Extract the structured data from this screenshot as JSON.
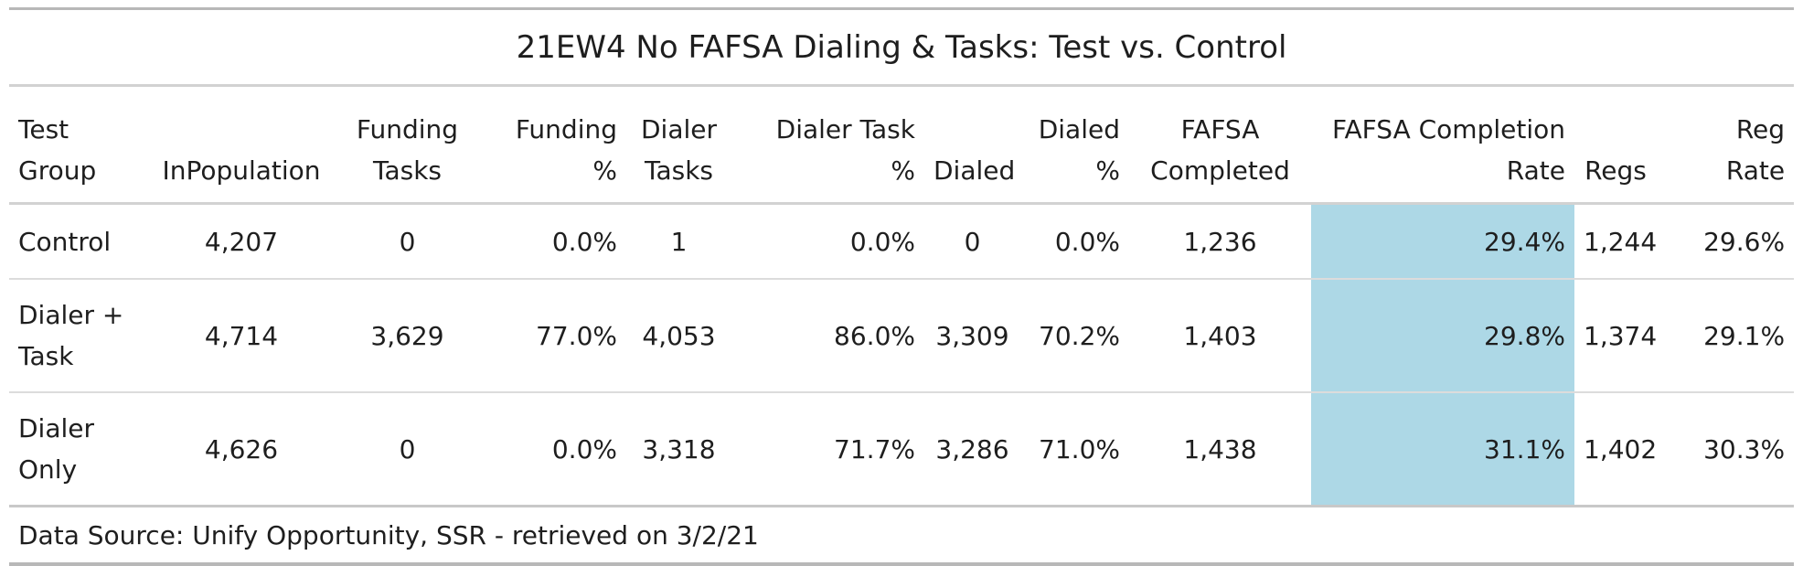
{
  "chart_data": {
    "type": "table",
    "title": "21EW4 No FAFSA Dialing & Tasks: Test vs. Control",
    "highlight_color": "#add8e6",
    "highlight_column": "FAFSA Completion Rate",
    "columns": [
      "Test Group",
      "InPopulation",
      "Funding Tasks",
      "Funding %",
      "Dialer Tasks",
      "Dialer Task %",
      "Dialed",
      "Dialed %",
      "FAFSA Completed",
      "FAFSA Completion Rate",
      "Regs",
      "Reg Rate"
    ],
    "header_lines": [
      [
        "Test",
        "Group"
      ],
      [
        "",
        "InPopulation"
      ],
      [
        "Funding",
        "Tasks"
      ],
      [
        "Funding",
        "%"
      ],
      [
        "Dialer",
        "Tasks"
      ],
      [
        "Dialer Task",
        "%"
      ],
      [
        "",
        "Dialed"
      ],
      [
        "Dialed",
        "%"
      ],
      [
        "FAFSA",
        "Completed"
      ],
      [
        "FAFSA Completion",
        "Rate"
      ],
      [
        "",
        "Regs"
      ],
      [
        "Reg",
        "Rate"
      ]
    ],
    "rows": [
      {
        "group_lines": [
          "Control"
        ],
        "values": [
          "4,207",
          "0",
          "0.0%",
          "1",
          "0.0%",
          "0",
          "0.0%",
          "1,236",
          "29.4%",
          "1,244",
          "29.6%"
        ]
      },
      {
        "group_lines": [
          "Dialer +",
          "Task"
        ],
        "values": [
          "4,714",
          "3,629",
          "77.0%",
          "4,053",
          "86.0%",
          "3,309",
          "70.2%",
          "1,403",
          "29.8%",
          "1,374",
          "29.1%"
        ]
      },
      {
        "group_lines": [
          "Dialer",
          "Only"
        ],
        "values": [
          "4,626",
          "0",
          "0.0%",
          "3,318",
          "71.7%",
          "3,286",
          "71.0%",
          "1,438",
          "31.1%",
          "1,402",
          "30.3%"
        ]
      }
    ],
    "footnote": "Data Source: Unify Opportunity, SSR - retrieved on 3/2/21"
  }
}
